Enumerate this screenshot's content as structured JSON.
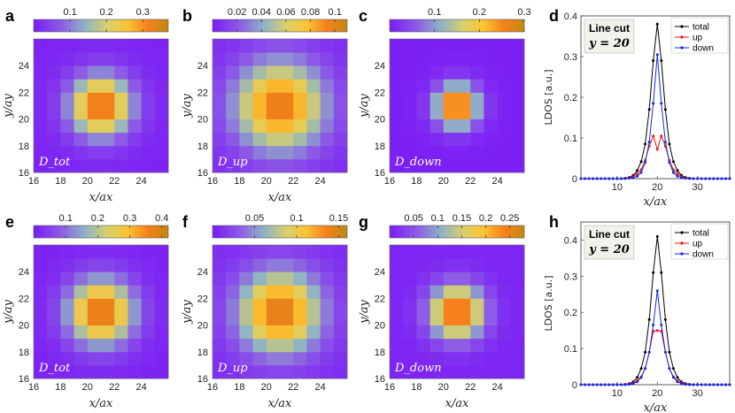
{
  "chart_data": [
    {
      "panel": "a",
      "type": "heatmap",
      "tag": "D_tot",
      "xlabel": "x/a_x",
      "ylabel": "y/a_y",
      "x_ticks": [
        "16",
        "18",
        "20",
        "22",
        "24"
      ],
      "y_ticks": [
        "16",
        "18",
        "20",
        "22",
        "24"
      ],
      "colorbar": {
        "range": [
          0.0,
          0.37
        ],
        "ticks": [
          "0.1",
          "0.2",
          "0.3"
        ],
        "tick_values": [
          0.1,
          0.2,
          0.3
        ]
      },
      "grid_x_range": [
        16,
        25
      ],
      "grid_y_range": [
        16,
        25
      ],
      "peak": 0.35,
      "center": [
        20.5,
        20.5
      ],
      "sigma": [
        1.6,
        1.6
      ],
      "floor": 0.01
    },
    {
      "panel": "b",
      "type": "heatmap",
      "tag": "D_up",
      "xlabel": "x/a_x",
      "ylabel": "y/a_y",
      "x_ticks": [
        "16",
        "18",
        "20",
        "22",
        "24"
      ],
      "y_ticks": [
        "16",
        "18",
        "20",
        "22",
        "24"
      ],
      "colorbar": {
        "range": [
          0.0,
          0.11
        ],
        "ticks": [
          "0.02",
          "0.04",
          "0.06",
          "0.08",
          "0.1"
        ],
        "tick_values": [
          0.02,
          0.04,
          0.06,
          0.08,
          0.1
        ]
      },
      "grid_x_range": [
        16,
        25
      ],
      "grid_y_range": [
        16,
        25
      ],
      "peak": 0.1,
      "center": [
        20.5,
        20.5
      ],
      "sigma": [
        2.3,
        2.3
      ],
      "floor": 0.005
    },
    {
      "panel": "c",
      "type": "heatmap",
      "tag": "D_down",
      "xlabel": "",
      "ylabel": "y/a_y",
      "x_ticks": [
        "16",
        "18",
        "20",
        "22",
        "24"
      ],
      "y_ticks": [
        "16",
        "18",
        "20",
        "22",
        "24"
      ],
      "colorbar": {
        "range": [
          0.0,
          0.3
        ],
        "ticks": [
          "0.1",
          "0.2",
          "0.3"
        ],
        "tick_values": [
          0.1,
          0.2,
          0.3
        ]
      },
      "grid_x_range": [
        16,
        25
      ],
      "grid_y_range": [
        16,
        25
      ],
      "peak": 0.3,
      "center": [
        20.5,
        20.5
      ],
      "sigma": [
        1.1,
        1.1
      ],
      "floor": 0.005
    },
    {
      "panel": "d",
      "type": "line",
      "box_line1": "Line cut",
      "box_line2": "y = 20",
      "xlabel": "x/a_x",
      "ylabel": "LDOS [a.u.]",
      "xlim": [
        1,
        38
      ],
      "ylim": [
        0,
        0.4
      ],
      "x_ticks": [
        "10",
        "20",
        "30"
      ],
      "x_tick_values": [
        10,
        20,
        30
      ],
      "y_ticks": [
        "0",
        "0.1",
        "0.2",
        "0.3",
        "0.4"
      ],
      "y_tick_values": [
        0,
        0.1,
        0.2,
        0.3,
        0.4
      ],
      "x": [
        1,
        2,
        3,
        4,
        5,
        6,
        7,
        8,
        9,
        10,
        11,
        12,
        13,
        14,
        15,
        16,
        17,
        18,
        19,
        20,
        21,
        22,
        23,
        24,
        25,
        26,
        27,
        28,
        29,
        30,
        31,
        32,
        33,
        34,
        35,
        36,
        37,
        38
      ],
      "series": [
        {
          "name": "total",
          "color": "#000000",
          "values": [
            0,
            0,
            0,
            0,
            0,
            0,
            0,
            0,
            0,
            0,
            0,
            0.001,
            0.003,
            0.008,
            0.02,
            0.042,
            0.085,
            0.17,
            0.29,
            0.38,
            0.29,
            0.17,
            0.085,
            0.042,
            0.02,
            0.008,
            0.003,
            0.001,
            0,
            0,
            0,
            0,
            0,
            0,
            0,
            0,
            0,
            0
          ]
        },
        {
          "name": "up",
          "color": "#e8141a",
          "values": [
            0,
            0,
            0,
            0,
            0,
            0,
            0,
            0,
            0,
            0,
            0,
            0.001,
            0.002,
            0.005,
            0.012,
            0.022,
            0.045,
            0.08,
            0.105,
            0.072,
            0.105,
            0.08,
            0.045,
            0.022,
            0.012,
            0.005,
            0.002,
            0.001,
            0,
            0,
            0,
            0,
            0,
            0,
            0,
            0,
            0,
            0
          ]
        },
        {
          "name": "down",
          "color": "#1428e0",
          "values": [
            0,
            0,
            0,
            0,
            0,
            0,
            0,
            0,
            0,
            0,
            0,
            0,
            0.001,
            0.002,
            0.006,
            0.015,
            0.04,
            0.09,
            0.185,
            0.305,
            0.185,
            0.09,
            0.04,
            0.015,
            0.006,
            0.002,
            0.001,
            0,
            0,
            0,
            0,
            0,
            0,
            0,
            0,
            0,
            0,
            0
          ]
        }
      ]
    },
    {
      "panel": "e",
      "type": "heatmap",
      "tag": "D_tot",
      "xlabel": "x/a_x",
      "ylabel": "y/a_y",
      "x_ticks": [
        "16",
        "18",
        "20",
        "22",
        "24"
      ],
      "y_ticks": [
        "16",
        "18",
        "20",
        "22",
        "24"
      ],
      "colorbar": {
        "range": [
          0.0,
          0.42
        ],
        "ticks": [
          "0.1",
          "0.2",
          "0.3",
          "0.4"
        ],
        "tick_values": [
          0.1,
          0.2,
          0.3,
          0.4
        ]
      },
      "grid_x_range": [
        16,
        25
      ],
      "grid_y_range": [
        16,
        25
      ],
      "peak": 0.4,
      "center": [
        20.5,
        20.5
      ],
      "sigma": [
        1.7,
        1.7
      ],
      "floor": 0.01
    },
    {
      "panel": "f",
      "type": "heatmap",
      "tag": "D_up",
      "xlabel": "x/a_x",
      "ylabel": "y/a_y",
      "x_ticks": [
        "16",
        "18",
        "20",
        "22",
        "24"
      ],
      "y_ticks": [
        "16",
        "18",
        "20",
        "22",
        "24"
      ],
      "colorbar": {
        "range": [
          0.0,
          0.16
        ],
        "ticks": [
          "0.05",
          "0.1",
          "0.15"
        ],
        "tick_values": [
          0.05,
          0.1,
          0.15
        ]
      },
      "grid_x_range": [
        16,
        25
      ],
      "grid_y_range": [
        16,
        25
      ],
      "peak": 0.15,
      "center": [
        20.5,
        20.5
      ],
      "sigma": [
        2.1,
        2.1
      ],
      "floor": 0.008
    },
    {
      "panel": "g",
      "type": "heatmap",
      "tag": "D_down",
      "xlabel": "x/a_x",
      "ylabel": "y/a_y",
      "x_ticks": [
        "16",
        "18",
        "20",
        "22",
        "24"
      ],
      "y_ticks": [
        "16",
        "18",
        "20",
        "22",
        "24"
      ],
      "colorbar": {
        "range": [
          0.0,
          0.28
        ],
        "ticks": [
          "0.05",
          "0.1",
          "0.15",
          "0.2",
          "0.25"
        ],
        "tick_values": [
          0.05,
          0.1,
          0.15,
          0.2,
          0.25
        ]
      },
      "grid_x_range": [
        16,
        25
      ],
      "grid_y_range": [
        16,
        25
      ],
      "peak": 0.27,
      "center": [
        20.5,
        20.5
      ],
      "sigma": [
        1.4,
        1.4
      ],
      "floor": 0.008
    },
    {
      "panel": "h",
      "type": "line",
      "box_line1": "Line cut",
      "box_line2": "y = 20",
      "xlabel": "x/a_x",
      "ylabel": "LDOS [a.u.]",
      "xlim": [
        1,
        38
      ],
      "ylim": [
        0,
        0.45
      ],
      "x_ticks": [
        "10",
        "20",
        "30"
      ],
      "x_tick_values": [
        10,
        20,
        30
      ],
      "y_ticks": [
        "0",
        "0.1",
        "0.2",
        "0.3",
        "0.4"
      ],
      "y_tick_values": [
        0,
        0.1,
        0.2,
        0.3,
        0.4
      ],
      "x": [
        1,
        2,
        3,
        4,
        5,
        6,
        7,
        8,
        9,
        10,
        11,
        12,
        13,
        14,
        15,
        16,
        17,
        18,
        19,
        20,
        21,
        22,
        23,
        24,
        25,
        26,
        27,
        28,
        29,
        30,
        31,
        32,
        33,
        34,
        35,
        36,
        37,
        38
      ],
      "series": [
        {
          "name": "total",
          "color": "#000000",
          "values": [
            0,
            0,
            0,
            0,
            0,
            0,
            0,
            0,
            0,
            0,
            0,
            0.001,
            0.003,
            0.008,
            0.02,
            0.045,
            0.09,
            0.18,
            0.31,
            0.41,
            0.31,
            0.18,
            0.09,
            0.045,
            0.02,
            0.008,
            0.003,
            0.001,
            0,
            0,
            0,
            0,
            0,
            0,
            0,
            0,
            0,
            0
          ]
        },
        {
          "name": "up",
          "color": "#e8141a",
          "values": [
            0,
            0,
            0,
            0,
            0,
            0,
            0,
            0,
            0,
            0,
            0,
            0.001,
            0.002,
            0.005,
            0.011,
            0.022,
            0.045,
            0.09,
            0.148,
            0.15,
            0.148,
            0.09,
            0.045,
            0.022,
            0.011,
            0.005,
            0.002,
            0.001,
            0,
            0,
            0,
            0,
            0,
            0,
            0,
            0,
            0,
            0
          ]
        },
        {
          "name": "down",
          "color": "#1428e0",
          "values": [
            0,
            0,
            0,
            0,
            0,
            0,
            0,
            0,
            0,
            0,
            0,
            0,
            0.001,
            0.003,
            0.008,
            0.02,
            0.045,
            0.09,
            0.165,
            0.26,
            0.165,
            0.09,
            0.045,
            0.02,
            0.008,
            0.003,
            0.001,
            0,
            0,
            0,
            0,
            0,
            0,
            0,
            0,
            0,
            0,
            0
          ]
        }
      ]
    }
  ]
}
